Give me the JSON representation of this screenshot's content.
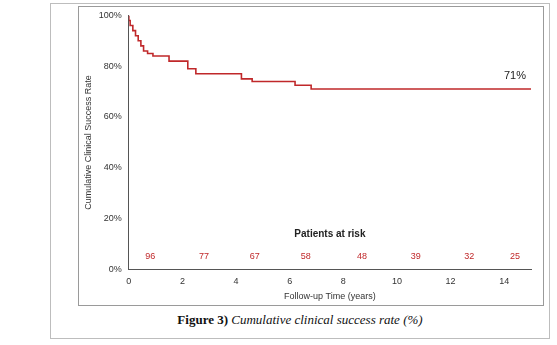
{
  "chart_data": {
    "type": "line",
    "title": null,
    "x_label": "Follow-up Time (years)",
    "y_label": "Cumulative Clinical Success Rate",
    "caption": {
      "prefix": "Figure 3)",
      "text": "Cumulative clinical success rate (%)"
    },
    "x": [
      0,
      0.05,
      0.15,
      0.25,
      0.35,
      0.45,
      0.55,
      0.7,
      0.9,
      1.5,
      2.2,
      2.5,
      4.2,
      4.6,
      6.2,
      6.8,
      8.3,
      15
    ],
    "values": [
      100,
      98,
      96,
      94,
      92,
      90,
      88,
      86,
      85,
      84,
      82,
      79,
      77,
      75,
      74,
      72.5,
      71,
      71
    ],
    "color": "#c0282a",
    "line_style": "step",
    "xlim": [
      0,
      15
    ],
    "xticks": [
      0,
      2,
      4,
      6,
      8,
      10,
      12,
      14
    ],
    "ylim": [
      0,
      100
    ],
    "yticks": [
      {
        "value": 0,
        "label": "0%"
      },
      {
        "value": 20,
        "label": "20%"
      },
      {
        "value": 40,
        "label": "40%"
      },
      {
        "value": 60,
        "label": "60%"
      },
      {
        "value": 80,
        "label": "80%"
      },
      {
        "value": 100,
        "label": "100%"
      }
    ],
    "grid": false,
    "annotations": [
      {
        "text": "71%",
        "x": 14.4,
        "y": 74
      }
    ],
    "at_risk": {
      "label": "Patients at risk",
      "label_x": 7.5,
      "label_y": 14,
      "y": 5,
      "x": [
        0.8,
        2.8,
        4.7,
        6.6,
        8.7,
        10.7,
        12.7,
        14.4
      ],
      "values": [
        96,
        77,
        67,
        58,
        48,
        39,
        32,
        25
      ]
    }
  }
}
